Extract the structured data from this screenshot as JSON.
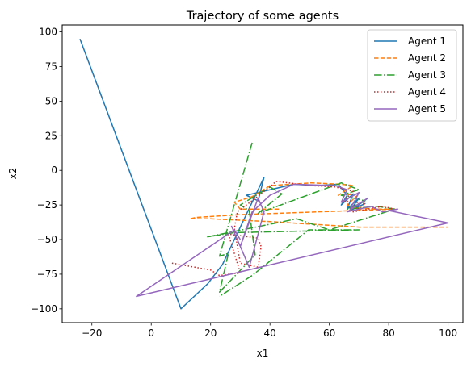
{
  "chart_data": {
    "type": "line",
    "title": "Trajectory of some agents",
    "xlabel": "x1",
    "ylabel": "x2",
    "xlim": [
      -30,
      105
    ],
    "ylim": [
      -110,
      105
    ],
    "xticks": [
      -20,
      0,
      20,
      40,
      60,
      80,
      100
    ],
    "yticks": [
      -100,
      -75,
      -50,
      -25,
      0,
      25,
      50,
      75,
      100
    ],
    "grid": false,
    "legend_position": "top-right",
    "series": [
      {
        "name": "Agent 1",
        "color": "#1f77b4",
        "linestyle": "solid",
        "x": [
          -24,
          10,
          19,
          24,
          38,
          36,
          32,
          48,
          56,
          63,
          66,
          64,
          68,
          66,
          70,
          67,
          72,
          68,
          73
        ],
        "y": [
          95,
          -100,
          -82,
          -68,
          -5,
          -22,
          -18,
          -10,
          -11,
          -10,
          -18,
          -25,
          -17,
          -28,
          -20,
          -29,
          -24,
          -28,
          -20
        ]
      },
      {
        "name": "Agent 2",
        "color": "#ff7f0e",
        "linestyle": "dashed",
        "x": [
          43,
          30,
          28,
          34,
          40,
          54,
          64,
          68,
          63,
          70,
          66,
          72,
          68,
          76,
          82,
          30,
          15,
          13,
          20,
          40,
          70,
          100
        ],
        "y": [
          -28,
          -28,
          -23,
          -19,
          -11,
          -9,
          -10,
          -11,
          -18,
          -17,
          -25,
          -29,
          -27,
          -28,
          -28,
          -32,
          -34,
          -35,
          -35,
          -37,
          -41,
          -41
        ]
      },
      {
        "name": "Agent 3",
        "color": "#2ca02c",
        "linestyle": "dashdot",
        "x": [
          34,
          23,
          26,
          23,
          35,
          33,
          30,
          40,
          44,
          36,
          64,
          70,
          64,
          72,
          66,
          76,
          82,
          60,
          49,
          19,
          28,
          70,
          53,
          34,
          23
        ],
        "y": [
          20,
          -62,
          -60,
          -88,
          -61,
          -29,
          -25,
          -12,
          -17,
          -31,
          -9,
          -14,
          -18,
          -22,
          -28,
          -26,
          -28,
          -43,
          -35,
          -48,
          -45,
          -43,
          -43,
          -76,
          -91
        ]
      },
      {
        "name": "Agent 4",
        "color": "#d62728",
        "linestyle": "dotted",
        "x": [
          7,
          20,
          23,
          30,
          26,
          36,
          37,
          36,
          30,
          28,
          29,
          40,
          42,
          54,
          62,
          68,
          65,
          72,
          68,
          78,
          82
        ],
        "y": [
          -67,
          -72,
          -76,
          -74,
          -46,
          -49,
          -55,
          -70,
          -67,
          -42,
          -30,
          -12,
          -8,
          -11,
          -12,
          -15,
          -22,
          -24,
          -30,
          -26,
          -28
        ]
      },
      {
        "name": "Agent 5",
        "color": "#9467bd",
        "linestyle": "solid",
        "x": [
          27,
          33,
          38,
          36,
          30,
          34,
          40,
          48,
          62,
          66,
          64,
          70,
          67,
          73,
          66,
          74,
          78,
          83,
          80,
          100,
          -5,
          28,
          30
        ],
        "y": [
          -40,
          -70,
          -30,
          -20,
          -55,
          -30,
          -18,
          -10,
          -11,
          -14,
          -23,
          -16,
          -28,
          -20,
          -30,
          -26,
          -30,
          -28,
          -29,
          -38,
          -91,
          -43,
          -50
        ]
      }
    ]
  }
}
